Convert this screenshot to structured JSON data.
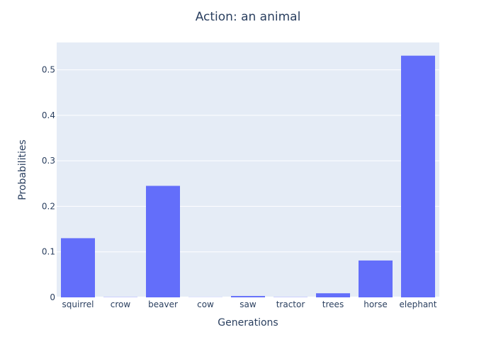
{
  "chart_data": {
    "type": "bar",
    "title": "Action: an animal",
    "xlabel": "Generations",
    "ylabel": "Probabilities",
    "categories": [
      "squirrel",
      "crow",
      "beaver",
      "cow",
      "saw",
      "tractor",
      "trees",
      "horse",
      "elephant"
    ],
    "values": [
      0.13,
      0.0005,
      0.245,
      0.0003,
      0.003,
      0.0005,
      0.009,
      0.081,
      0.531
    ],
    "ylim": [
      0,
      0.56
    ],
    "yticks": [
      0,
      0.1,
      0.2,
      0.3,
      0.4,
      0.5
    ],
    "ytick_labels": [
      "0",
      "0.1",
      "0.2",
      "0.3",
      "0.4",
      "0.5"
    ],
    "grid": true,
    "legend": "none"
  },
  "colors": {
    "bar": "#636efa",
    "plot_background": "#e5ecf6",
    "page_background": "#ffffff",
    "grid": "#ffffff",
    "text": "#2a3f5f"
  }
}
